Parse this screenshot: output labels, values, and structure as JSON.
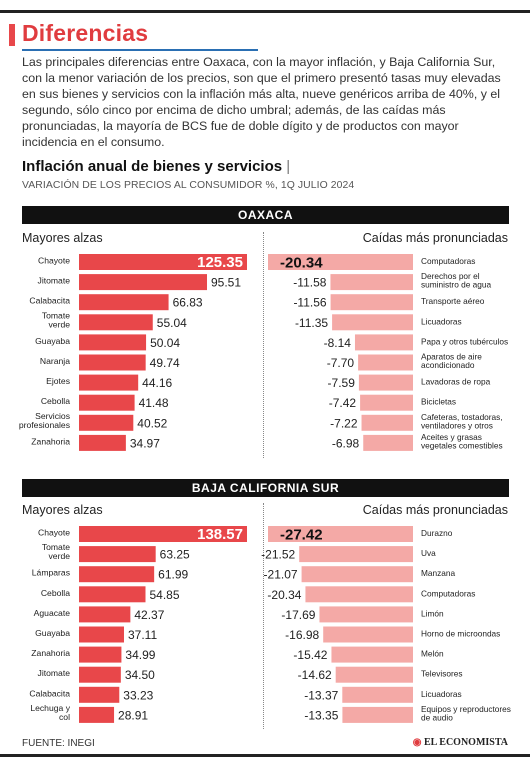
{
  "header": {
    "title": "Diferencias",
    "intro": "Las principales diferencias entre Oaxaca, con la mayor inflación, y Baja California Sur, con la menor variación de los precios, son que el primero presentó tasas muy elevadas en sus bienes y servicios con la inflación más alta, nueve genéricos arriba de 40%, y el segundo, sólo cinco por encima de dicho umbral; además, de las caídas más pronunciadas, la mayoría de BCS fue de doble dígito y de productos con mayor incidencia en el consumo."
  },
  "chart": {
    "title": "Inflación anual de bienes y servicios",
    "separator": "|",
    "subtitle": "VARIACIÓN DE LOS PRECIOS AL CONSUMIDOR %, 1Q JULIO 2024"
  },
  "labels": {
    "rises": "Mayores alzas",
    "falls": "Caídas más pronunciadas"
  },
  "colors": {
    "bar_light": "#f4a9a6",
    "bar_strong": "#e8474a",
    "top_value_text": "#ffffff",
    "title": "#e03c3f"
  },
  "footer": {
    "source": "FUENTE: INEGI",
    "logo": "EL ECONOMISTA"
  },
  "chart_data": [
    {
      "type": "bar",
      "region": "OAXACA",
      "panel": "Mayores alzas",
      "categories": [
        "Chayote",
        "Jitomate",
        "Calabacita",
        "Tomate verde",
        "Guayaba",
        "Naranja",
        "Ejotes",
        "Cebolla",
        "Servicios profesionales",
        "Zanahoria"
      ],
      "values": [
        125.35,
        95.51,
        66.83,
        55.04,
        50.04,
        49.74,
        44.16,
        41.48,
        40.52,
        34.97
      ],
      "ylim": [
        0,
        125.35
      ]
    },
    {
      "type": "bar",
      "region": "OAXACA",
      "panel": "Caídas más pronunciadas",
      "categories": [
        "Computadoras",
        "Derechos por el suministro de agua",
        "Transporte aéreo",
        "Licuadoras",
        "Papa y otros tubérculos",
        "Aparatos de aire acondicionado",
        "Lavadoras de ropa",
        "Bicicletas",
        "Cafeteras, tostadoras, ventiladores y otros",
        "Aceites y grasas vegetales comestibles"
      ],
      "values": [
        -20.34,
        -11.58,
        -11.56,
        -11.35,
        -8.14,
        -7.7,
        -7.59,
        -7.42,
        -7.22,
        -6.98
      ],
      "ylim": [
        -20.34,
        0
      ]
    },
    {
      "type": "bar",
      "region": "BAJA CALIFORNIA SUR",
      "panel": "Mayores alzas",
      "categories": [
        "Chayote",
        "Tomate verde",
        "Lámparas",
        "Cebolla",
        "Aguacate",
        "Guayaba",
        "Zanahoria",
        "Jitomate",
        "Calabacita",
        "Lechuga y col"
      ],
      "values": [
        138.57,
        63.25,
        61.99,
        54.85,
        42.37,
        37.11,
        34.99,
        34.5,
        33.23,
        28.91
      ],
      "ylim": [
        0,
        138.57
      ]
    },
    {
      "type": "bar",
      "region": "BAJA CALIFORNIA SUR",
      "panel": "Caídas más pronunciadas",
      "categories": [
        "Durazno",
        "Uva",
        "Manzana",
        "Computadoras",
        "Limón",
        "Horno de microondas",
        "Melón",
        "Televisores",
        "Licuadoras",
        "Equipos y reproductores de audio"
      ],
      "values": [
        -27.42,
        -21.52,
        -21.07,
        -20.34,
        -17.69,
        -16.98,
        -15.42,
        -14.62,
        -13.37,
        -13.35
      ],
      "ylim": [
        -27.42,
        0
      ]
    }
  ]
}
